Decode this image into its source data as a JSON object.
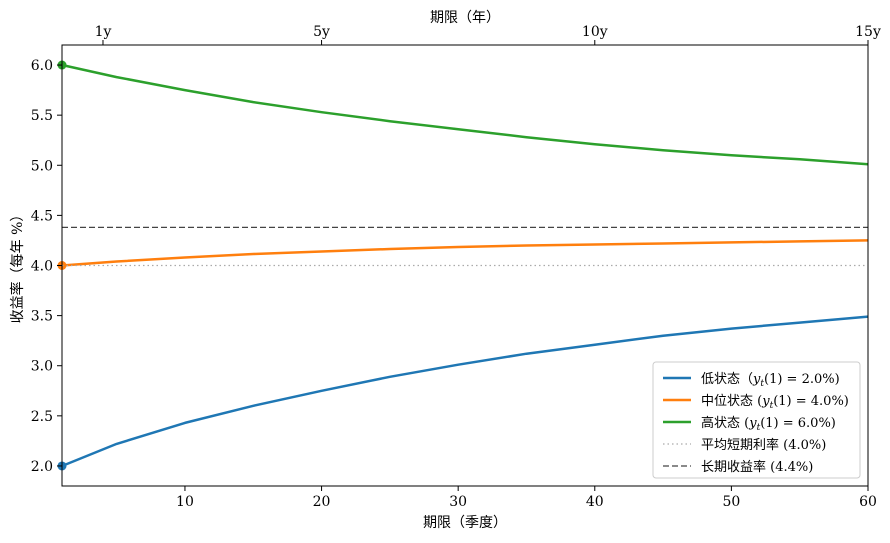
{
  "chart_data": {
    "type": "line",
    "xlabel": "期限（季度）",
    "ylabel": "收益率（每年 %）",
    "top_xlabel": "期限（年）",
    "xlim": [
      1,
      60
    ],
    "ylim": [
      1.8,
      6.2
    ],
    "x_ticks": [
      10,
      20,
      30,
      40,
      50,
      60
    ],
    "y_ticks": [
      2.0,
      2.5,
      3.0,
      3.5,
      4.0,
      4.5,
      5.0,
      5.5,
      6.0
    ],
    "y_tick_labels": [
      "2.0",
      "2.5",
      "3.0",
      "3.5",
      "4.0",
      "4.5",
      "5.0",
      "5.5",
      "6.0"
    ],
    "top_ticks": [
      {
        "x": 4,
        "label": "1y"
      },
      {
        "x": 20,
        "label": "5y"
      },
      {
        "x": 40,
        "label": "10y"
      },
      {
        "x": 60,
        "label": "15y"
      }
    ],
    "grid": false,
    "legend_position": "lower-right",
    "series": [
      {
        "name": "低状态（y_t(1) = 2.0%）",
        "legend": {
          "prefix": "低状态（",
          "sub": "t",
          "suffix": "(1) = 2.0%)"
        },
        "color": "#1f77b4",
        "style": "solid",
        "x": [
          1,
          5,
          10,
          15,
          20,
          25,
          30,
          35,
          40,
          45,
          50,
          55,
          60
        ],
        "y": [
          2.0,
          2.22,
          2.43,
          2.6,
          2.75,
          2.89,
          3.01,
          3.12,
          3.21,
          3.3,
          3.37,
          3.43,
          3.49
        ],
        "start_marker": true
      },
      {
        "name": "中位状态 (y_t(1) = 4.0%)",
        "legend": {
          "prefix": "中位状态 (",
          "sub": "t",
          "suffix": "(1) = 4.0%)"
        },
        "color": "#ff7f0e",
        "style": "solid",
        "x": [
          1,
          5,
          10,
          15,
          20,
          25,
          30,
          35,
          40,
          45,
          50,
          55,
          60
        ],
        "y": [
          4.0,
          4.04,
          4.08,
          4.115,
          4.14,
          4.165,
          4.185,
          4.2,
          4.21,
          4.22,
          4.23,
          4.24,
          4.25
        ],
        "start_marker": true
      },
      {
        "name": "高状态 (y_t(1) = 6.0%)",
        "legend": {
          "prefix": "高状态 (",
          "sub": "t",
          "suffix": "(1) = 6.0%)"
        },
        "color": "#2ca02c",
        "style": "solid",
        "x": [
          1,
          5,
          10,
          15,
          20,
          25,
          30,
          35,
          40,
          45,
          50,
          55,
          60
        ],
        "y": [
          6.0,
          5.88,
          5.75,
          5.63,
          5.53,
          5.44,
          5.36,
          5.28,
          5.21,
          5.15,
          5.1,
          5.06,
          5.01
        ],
        "start_marker": true
      },
      {
        "name": "平均短期利率 (4.0%)",
        "color": "#aaaaaa",
        "style": "dotted",
        "x": [
          1,
          60
        ],
        "y": [
          4.0,
          4.0
        ]
      },
      {
        "name": "长期收益率 (4.4%)",
        "color": "#444444",
        "style": "dashed",
        "x": [
          1,
          60
        ],
        "y": [
          4.38,
          4.38
        ]
      }
    ]
  }
}
